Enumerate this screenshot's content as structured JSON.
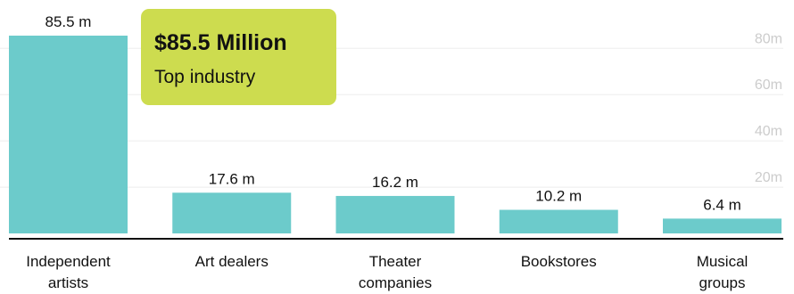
{
  "callout": {
    "value": "$85.5 Million",
    "label": "Top industry"
  },
  "colors": {
    "bar": "#6ccbcb",
    "callout": "#cddc4f",
    "axis_line": "#111111",
    "grid": "#eeeeee",
    "tick_label": "#cccccc",
    "text": "#111111"
  },
  "chart_data": {
    "type": "bar",
    "categories": [
      "Independent artists",
      "Art dealers",
      "Theater companies",
      "Bookstores",
      "Musical groups"
    ],
    "category_labels": [
      [
        "Independent",
        "artists"
      ],
      [
        "Art dealers"
      ],
      [
        "Theater",
        "companies"
      ],
      [
        "Bookstores"
      ],
      [
        "Musical",
        "groups"
      ]
    ],
    "values": [
      85.5,
      17.6,
      16.2,
      10.2,
      6.4
    ],
    "data_labels": [
      "85.5 m",
      "17.6 m",
      "16.2 m",
      "10.2 m",
      "6.4 m"
    ],
    "unit": "million",
    "ylim": [
      0,
      85.5
    ],
    "yticks": [
      20,
      40,
      60,
      80
    ],
    "ytick_labels": [
      "20m",
      "40m",
      "60m",
      "80m"
    ],
    "grid": true,
    "title": "",
    "xlabel": "",
    "ylabel": ""
  }
}
